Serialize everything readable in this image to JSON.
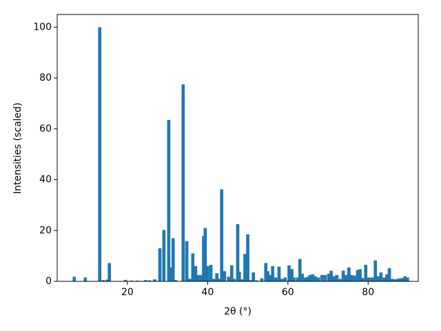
{
  "chart_data": {
    "type": "bar",
    "xlabel": "2θ (°)",
    "ylabel": "Intensities (scaled)",
    "color": "#1f77b4",
    "x": [
      6.75,
      9.5,
      13.1,
      14.0,
      15.0,
      15.5,
      19.5,
      21.0,
      22.5,
      24.5,
      25.5,
      26.8,
      28.1,
      29.1,
      30.3,
      30.7,
      31.4,
      32.0,
      33.9,
      34.8,
      35.5,
      36.3,
      37.0,
      37.6,
      38.4,
      39.0,
      39.4,
      40.0,
      40.8,
      41.5,
      42.3,
      43.0,
      43.5,
      44.2,
      45.2,
      46.0,
      46.6,
      47.5,
      47.9,
      48.6,
      49.3,
      50.0,
      50.7,
      51.4,
      52.2,
      53.5,
      54.5,
      55.0,
      55.5,
      56.2,
      57.0,
      57.8,
      58.5,
      59.3,
      60.3,
      61.0,
      61.6,
      62.5,
      63.0,
      63.6,
      64.3,
      65.0,
      65.5,
      66.2,
      66.8,
      67.6,
      68.5,
      69.3,
      70.2,
      70.8,
      71.4,
      72.2,
      73.0,
      73.8,
      74.4,
      75.2,
      75.8,
      76.6,
      77.4,
      78.0,
      78.6,
      79.4,
      80.2,
      81.0,
      81.8,
      82.5,
      83.2,
      84.0,
      84.7,
      85.3,
      86.0,
      86.8,
      87.4,
      88.0,
      88.6,
      89.2,
      89.8
    ],
    "values": [
      1.8,
      1.5,
      100,
      0.5,
      0.7,
      7.2,
      0.6,
      0.3,
      0.3,
      0.5,
      0.4,
      0.8,
      13,
      20.2,
      63.5,
      5.5,
      17,
      0.5,
      77.5,
      15.8,
      1,
      11,
      6,
      2.5,
      2.5,
      17.8,
      21,
      6,
      6.5,
      1,
      3.2,
      1,
      36.2,
      4,
      1.8,
      6.3,
      1,
      22.5,
      3.8,
      0.8,
      10.8,
      18.5,
      0.5,
      3.5,
      0.4,
      1.2,
      7.2,
      4,
      2.5,
      6,
      1.5,
      5.8,
      1,
      1.5,
      6.3,
      4.8,
      1.5,
      1.5,
      8.8,
      3,
      1.5,
      1.8,
      2.5,
      2.8,
      2,
      1.5,
      2.5,
      2.5,
      3,
      4.2,
      2,
      2.5,
      1,
      4.2,
      2.5,
      5.5,
      2.5,
      2.3,
      4.5,
      4.8,
      1.3,
      6.5,
      1.5,
      1.5,
      8.2,
      2,
      3.5,
      1.5,
      2.8,
      5.2,
      1,
      0.8,
      1,
      1.2,
      1.3,
      2,
      1.5
    ],
    "xlim": [
      2.5,
      92.5
    ],
    "xticks": [
      20,
      40,
      60,
      80
    ],
    "ylim": [
      0,
      105
    ],
    "yticks": [
      0,
      20,
      40,
      60,
      80,
      100
    ]
  }
}
